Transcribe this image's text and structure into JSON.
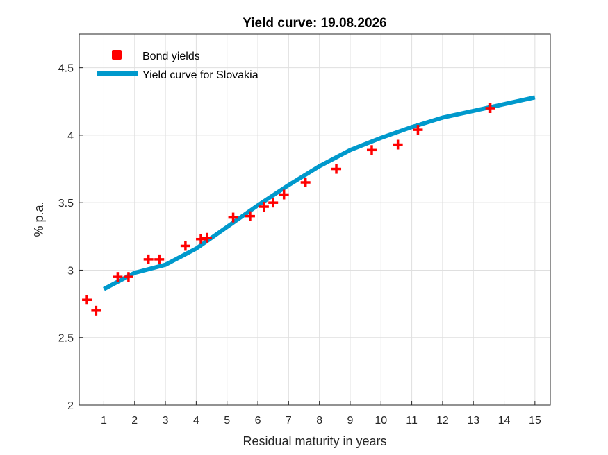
{
  "chart_data": {
    "type": "scatter",
    "title": "Yield curve: 19.08.2026",
    "xlabel": "Residual maturity in years",
    "ylabel": "% p.a.",
    "xlim": [
      0.2,
      15.5
    ],
    "ylim": [
      2,
      4.75
    ],
    "xticks": [
      "1",
      "2",
      "3",
      "4",
      "5",
      "6",
      "7",
      "8",
      "9",
      "10",
      "11",
      "12",
      "13",
      "14",
      "15"
    ],
    "yticks": [
      "2",
      "2.5",
      "3",
      "3.5",
      "4",
      "4.5"
    ],
    "grid": true,
    "legend_position": "top-left",
    "series": [
      {
        "name": "Bond yields",
        "kind": "markers",
        "color": "#ff0000",
        "points": [
          {
            "x": 0.45,
            "y": 2.78
          },
          {
            "x": 0.75,
            "y": 2.7
          },
          {
            "x": 1.45,
            "y": 2.95
          },
          {
            "x": 1.8,
            "y": 2.95
          },
          {
            "x": 2.45,
            "y": 3.08
          },
          {
            "x": 2.8,
            "y": 3.08
          },
          {
            "x": 3.65,
            "y": 3.18
          },
          {
            "x": 4.15,
            "y": 3.23
          },
          {
            "x": 4.35,
            "y": 3.24
          },
          {
            "x": 5.2,
            "y": 3.39
          },
          {
            "x": 5.75,
            "y": 3.4
          },
          {
            "x": 6.2,
            "y": 3.47
          },
          {
            "x": 6.5,
            "y": 3.5
          },
          {
            "x": 6.85,
            "y": 3.56
          },
          {
            "x": 7.55,
            "y": 3.65
          },
          {
            "x": 8.55,
            "y": 3.75
          },
          {
            "x": 9.7,
            "y": 3.89
          },
          {
            "x": 10.55,
            "y": 3.93
          },
          {
            "x": 11.2,
            "y": 4.04
          },
          {
            "x": 13.55,
            "y": 4.2
          }
        ]
      },
      {
        "name": "Yield curve for Slovakia",
        "kind": "line",
        "color": "#0099cc",
        "points": [
          {
            "x": 1.0,
            "y": 2.86
          },
          {
            "x": 2.0,
            "y": 2.98
          },
          {
            "x": 3.0,
            "y": 3.04
          },
          {
            "x": 4.0,
            "y": 3.16
          },
          {
            "x": 5.0,
            "y": 3.32
          },
          {
            "x": 6.0,
            "y": 3.48
          },
          {
            "x": 7.0,
            "y": 3.63
          },
          {
            "x": 8.0,
            "y": 3.77
          },
          {
            "x": 9.0,
            "y": 3.89
          },
          {
            "x": 10.0,
            "y": 3.98
          },
          {
            "x": 11.0,
            "y": 4.06
          },
          {
            "x": 12.0,
            "y": 4.13
          },
          {
            "x": 13.0,
            "y": 4.18
          },
          {
            "x": 14.0,
            "y": 4.23
          },
          {
            "x": 15.0,
            "y": 4.28
          }
        ]
      }
    ]
  }
}
